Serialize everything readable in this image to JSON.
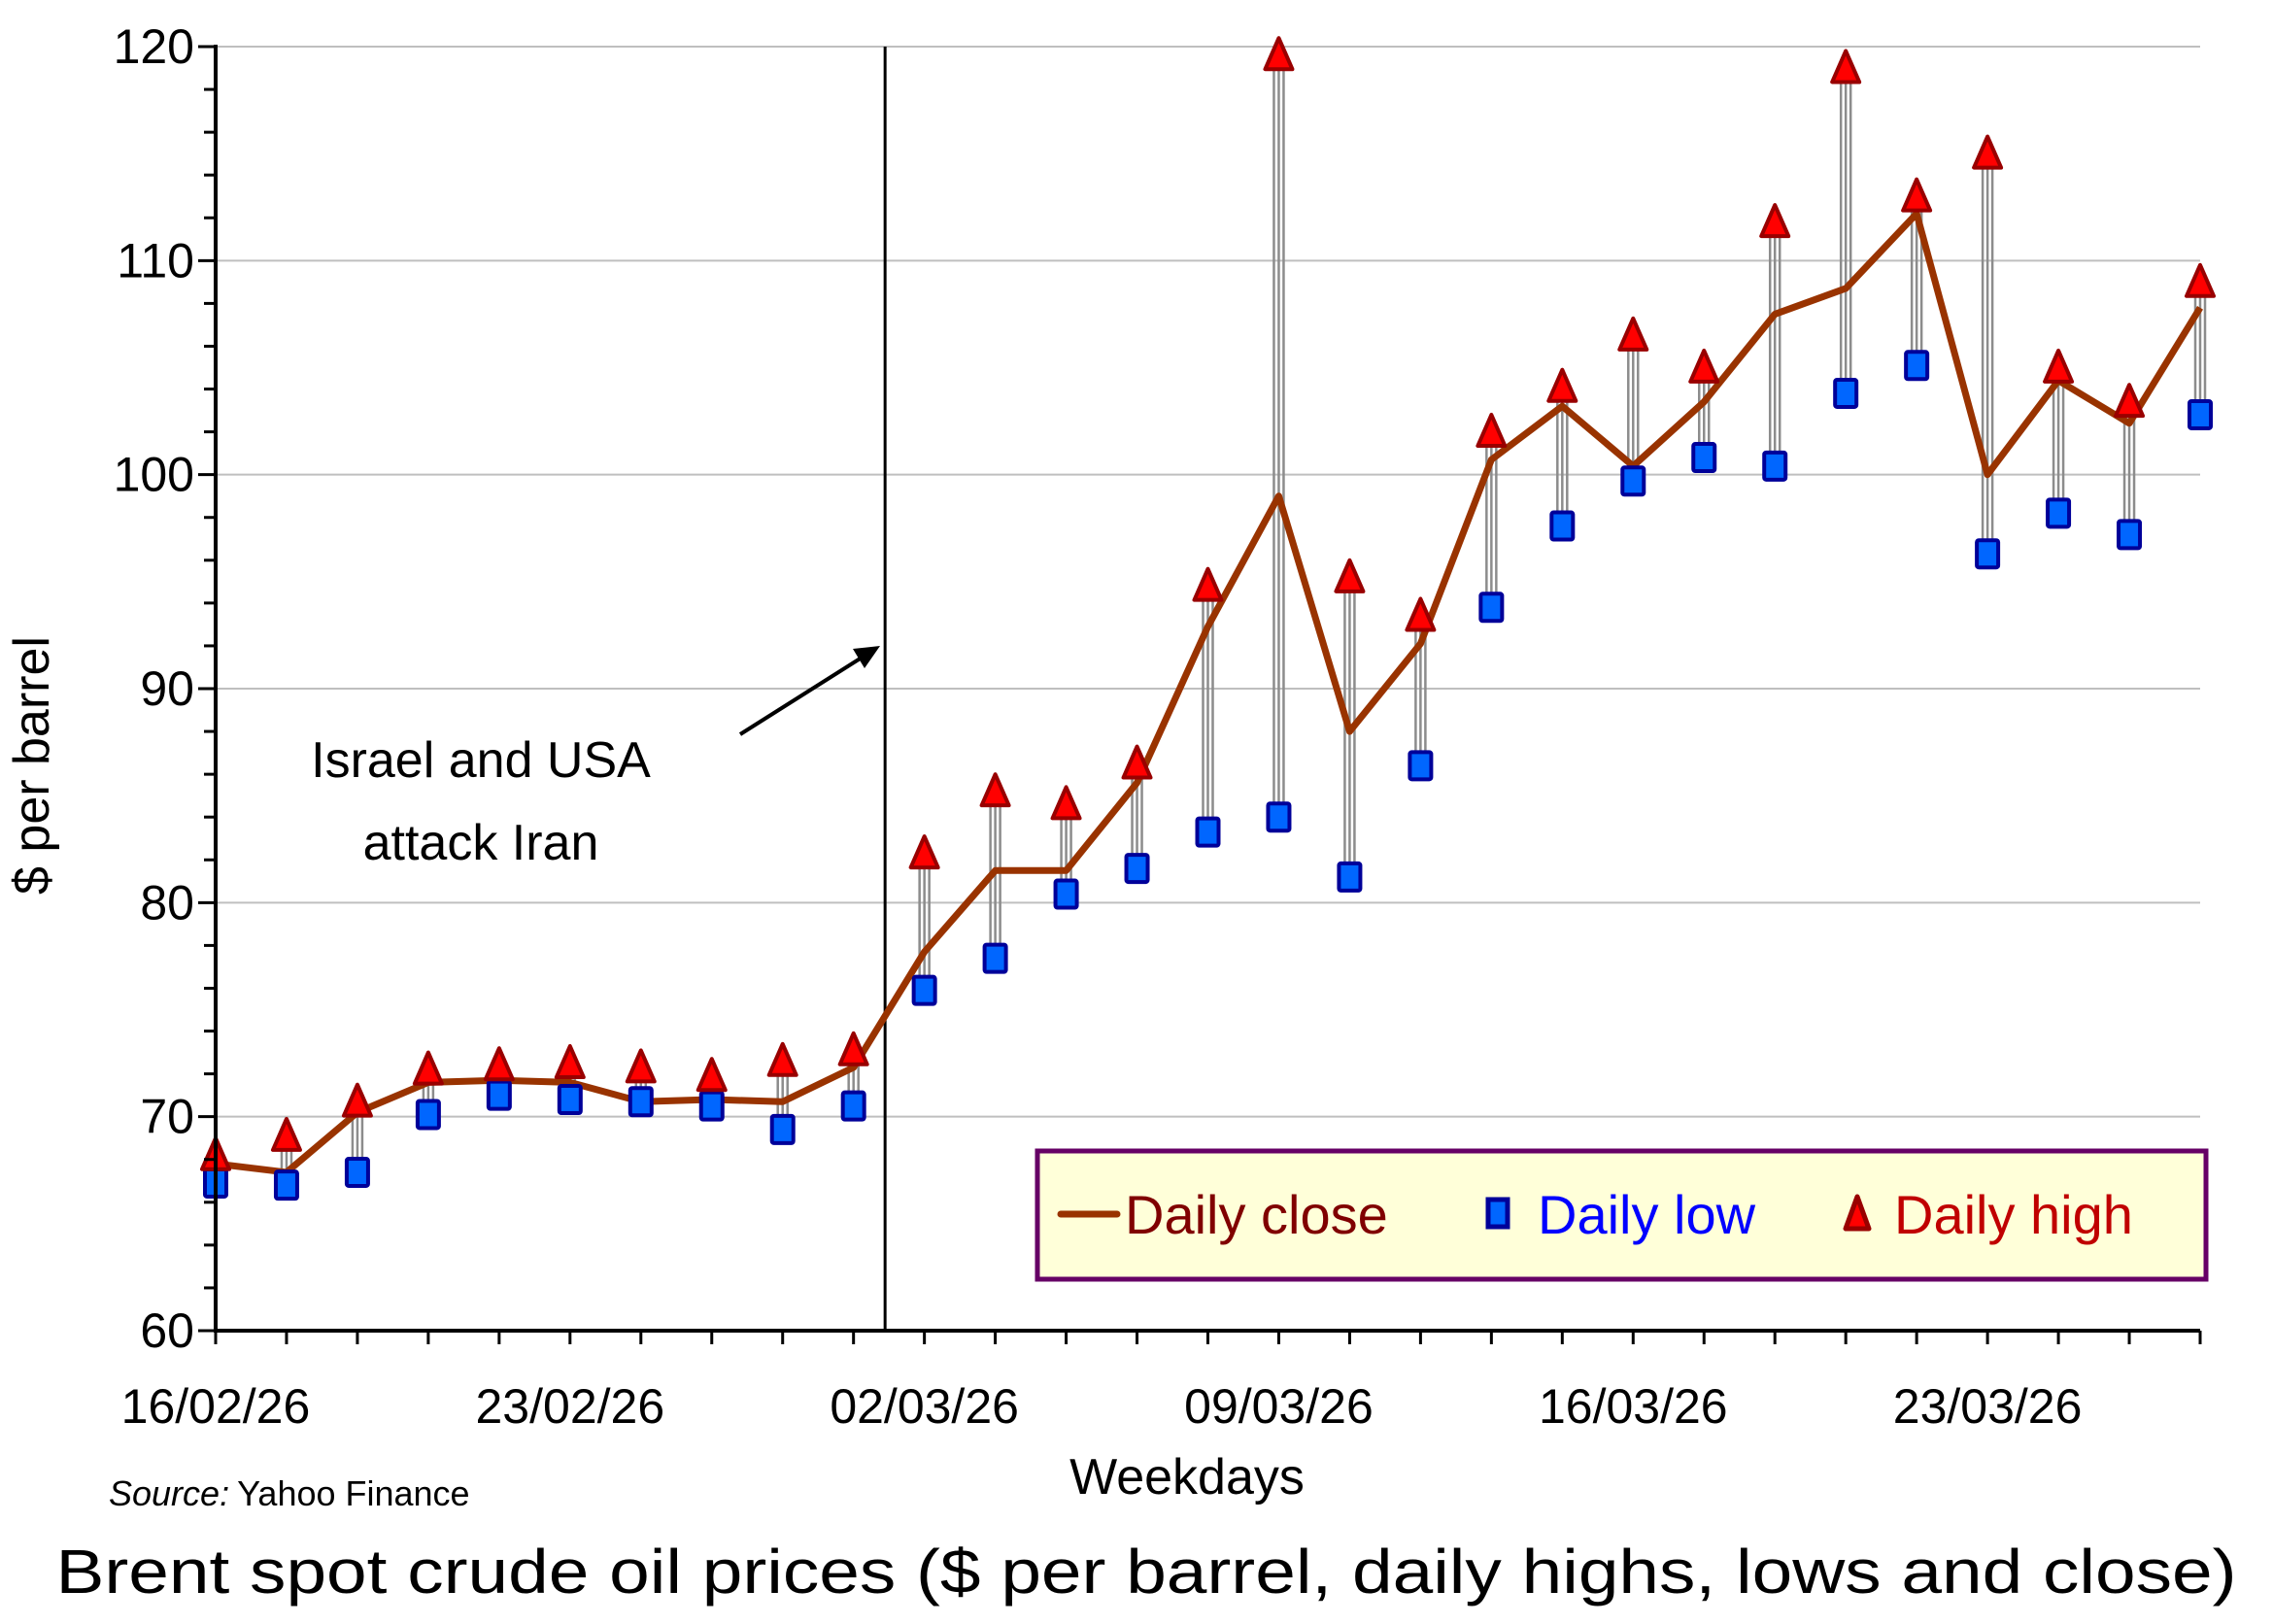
{
  "chart_data": {
    "type": "line",
    "title": "Brent spot crude oil prices ($ per barrel, daily highs, lows and close)",
    "xlabel": "Weekdays",
    "ylabel": "$ per barrel",
    "ylim": [
      60,
      120
    ],
    "yticks": [
      60,
      70,
      80,
      90,
      100,
      110,
      120
    ],
    "ytick_labels": [
      "60",
      "70",
      "80",
      "90",
      "100",
      "110",
      "120"
    ],
    "y_minor_step": 2,
    "grid": true,
    "xtick_labels": [
      {
        "index": 0,
        "label": "16/02/26"
      },
      {
        "index": 5,
        "label": "23/02/26"
      },
      {
        "index": 10,
        "label": "02/03/26"
      },
      {
        "index": 15,
        "label": "09/03/26"
      },
      {
        "index": 20,
        "label": "16/03/26"
      },
      {
        "index": 25,
        "label": "23/03/26"
      }
    ],
    "point_count": 29,
    "series": [
      {
        "name": "Daily close",
        "kind": "line",
        "color": "#993300",
        "text_color": "#800000",
        "values": [
          67.8,
          67.4,
          70.2,
          71.6,
          71.7,
          71.6,
          70.7,
          70.8,
          70.7,
          72.3,
          77.7,
          81.5,
          81.5,
          85.6,
          92.9,
          99.0,
          88.0,
          92.1,
          100.7,
          103.2,
          100.4,
          103.4,
          107.5,
          108.7,
          112.2,
          100.0,
          104.4,
          102.4,
          107.8
        ]
      },
      {
        "name": "Daily low",
        "kind": "marker-square",
        "color": "#0066FF",
        "edge_color": "#000099",
        "text_color": "#0000FF",
        "values": [
          66.9,
          66.8,
          67.4,
          70.1,
          71.0,
          70.8,
          70.7,
          70.5,
          69.4,
          70.5,
          75.9,
          77.4,
          80.4,
          81.6,
          83.3,
          84.0,
          81.2,
          86.4,
          93.8,
          97.6,
          99.7,
          100.8,
          100.4,
          103.8,
          105.1,
          96.3,
          98.2,
          97.2,
          102.8
        ]
      },
      {
        "name": "Daily high",
        "kind": "marker-triangle",
        "color": "#FF0000",
        "edge_color": "#990000",
        "text_color": "#C00000",
        "values": [
          68.0,
          68.9,
          70.5,
          72.0,
          72.2,
          72.3,
          72.1,
          71.7,
          72.4,
          72.9,
          82.1,
          85.0,
          84.4,
          86.3,
          94.6,
          119.4,
          95.0,
          93.2,
          101.8,
          103.9,
          106.3,
          104.8,
          111.6,
          118.8,
          112.8,
          114.8,
          104.8,
          103.2,
          108.8
        ]
      }
    ],
    "event_line": {
      "after_index": 9,
      "position": 9.5
    },
    "annotation": {
      "lines": [
        "Israel and USA",
        "attack Iran"
      ]
    },
    "legend": {
      "placement": "bottom-right",
      "background": "#FFFFD9",
      "border": "#660066"
    },
    "source_prefix": "Source:",
    "source_name": "Yahoo Finance"
  }
}
